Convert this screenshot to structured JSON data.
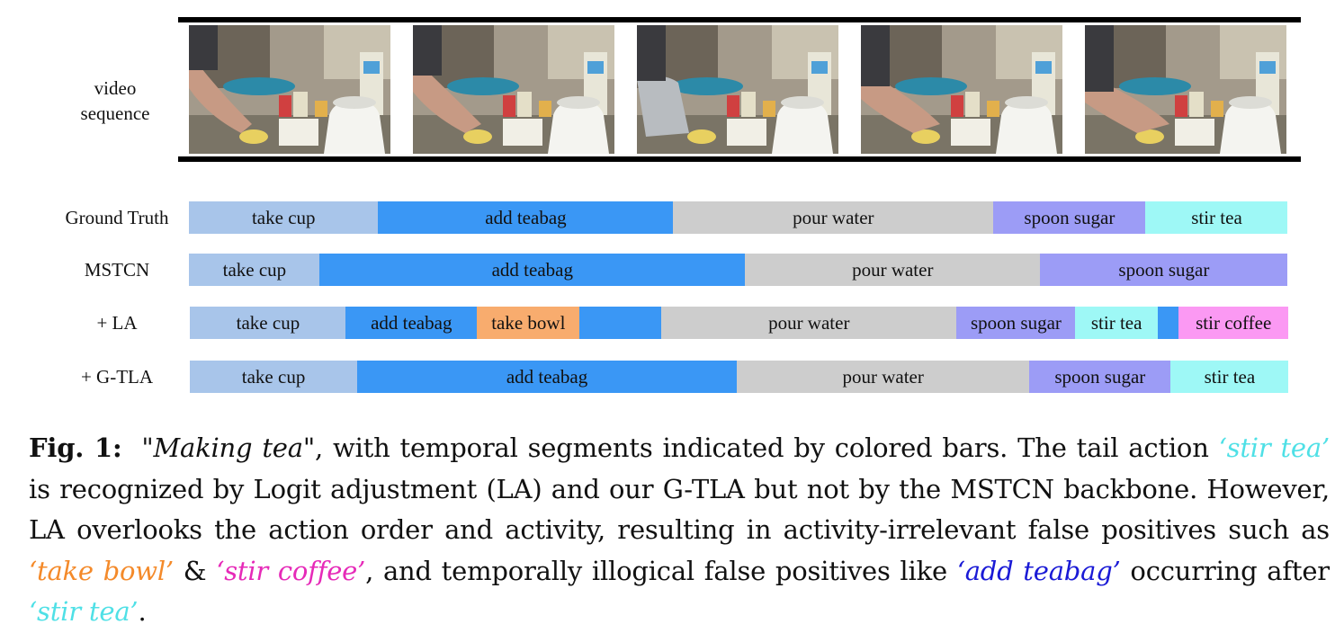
{
  "video": {
    "label_line1": "video",
    "label_line2": "sequence",
    "frame_count": 5
  },
  "rows": [
    {
      "label": "Ground Truth",
      "segments": [
        {
          "label": "take cup",
          "start": 0.0,
          "end": 0.172,
          "color": "#a8c5ea"
        },
        {
          "label": "add teabag",
          "start": 0.172,
          "end": 0.441,
          "color": "#3a97f5"
        },
        {
          "label": "pour water",
          "start": 0.441,
          "end": 0.732,
          "color": "#cdcdcd"
        },
        {
          "label": "spoon sugar",
          "start": 0.732,
          "end": 0.871,
          "color": "#9c9cf6"
        },
        {
          "label": "stir tea",
          "start": 0.871,
          "end": 1.0,
          "color": "#9ef8f6"
        }
      ]
    },
    {
      "label": "MSTCN",
      "segments": [
        {
          "label": "take cup",
          "start": 0.0,
          "end": 0.119,
          "color": "#a8c5ea"
        },
        {
          "label": "add teabag",
          "start": 0.119,
          "end": 0.506,
          "color": "#3a97f5"
        },
        {
          "label": "pour water",
          "start": 0.506,
          "end": 0.775,
          "color": "#cdcdcd"
        },
        {
          "label": "spoon sugar",
          "start": 0.775,
          "end": 1.0,
          "color": "#9c9cf6"
        }
      ]
    },
    {
      "label": "+ LA",
      "segments": [
        {
          "label": "take cup",
          "start": 0.0,
          "end": 0.142,
          "color": "#a8c5ea"
        },
        {
          "label": "add teabag",
          "start": 0.142,
          "end": 0.261,
          "color": "#3a97f5"
        },
        {
          "label": "take bowl",
          "start": 0.261,
          "end": 0.355,
          "color": "#f8ac6e"
        },
        {
          "label": "",
          "start": 0.355,
          "end": 0.429,
          "color": "#3a97f5"
        },
        {
          "label": "pour water",
          "start": 0.429,
          "end": 0.698,
          "color": "#cdcdcd"
        },
        {
          "label": "spoon sugar",
          "start": 0.698,
          "end": 0.806,
          "color": "#9c9cf6"
        },
        {
          "label": "stir tea",
          "start": 0.806,
          "end": 0.881,
          "color": "#9ef8f6"
        },
        {
          "label": "",
          "start": 0.881,
          "end": 0.9,
          "color": "#3a97f5"
        },
        {
          "label": "stir coffee",
          "start": 0.9,
          "end": 1.0,
          "color": "#fb99f3"
        }
      ]
    },
    {
      "label": "+ G-TLA",
      "segments": [
        {
          "label": "take cup",
          "start": 0.0,
          "end": 0.152,
          "color": "#a8c5ea"
        },
        {
          "label": "add teabag",
          "start": 0.152,
          "end": 0.498,
          "color": "#3a97f5"
        },
        {
          "label": "pour water",
          "start": 0.498,
          "end": 0.764,
          "color": "#cdcdcd"
        },
        {
          "label": "spoon sugar",
          "start": 0.764,
          "end": 0.893,
          "color": "#9c9cf6"
        },
        {
          "label": "stir tea",
          "start": 0.893,
          "end": 1.0,
          "color": "#9ef8f6"
        }
      ]
    }
  ],
  "caption": {
    "fig": "Fig. 1:",
    "title": "\"Making tea\"",
    "t1": ", with temporal segments indicated by colored bars. The tail action ",
    "q_stir_tea": "‘stir tea’",
    "t2": " is recognized by Logit adjustment (LA) and our G-TLA but not by the MSTCN backbone. However, LA overlooks the action order and activity, resulting in activity-irrelevant false positives such as ",
    "q_take_bowl": "‘take bowl’",
    "t3": " & ",
    "q_stir_coffee": "‘stir coffee’",
    "t4": ", and temporally illogical false positives like ",
    "q_add_teabag": "‘add teabag’",
    "t5": " occurring after ",
    "q_stir_tea_2": "‘stir tea’",
    "t6": ".",
    "colors": {
      "stir_tea": "#4fe0e6",
      "take_bowl": "#f48a2a",
      "stir_coffee": "#e62ab8",
      "add_teabag": "#1a1ad6"
    }
  }
}
